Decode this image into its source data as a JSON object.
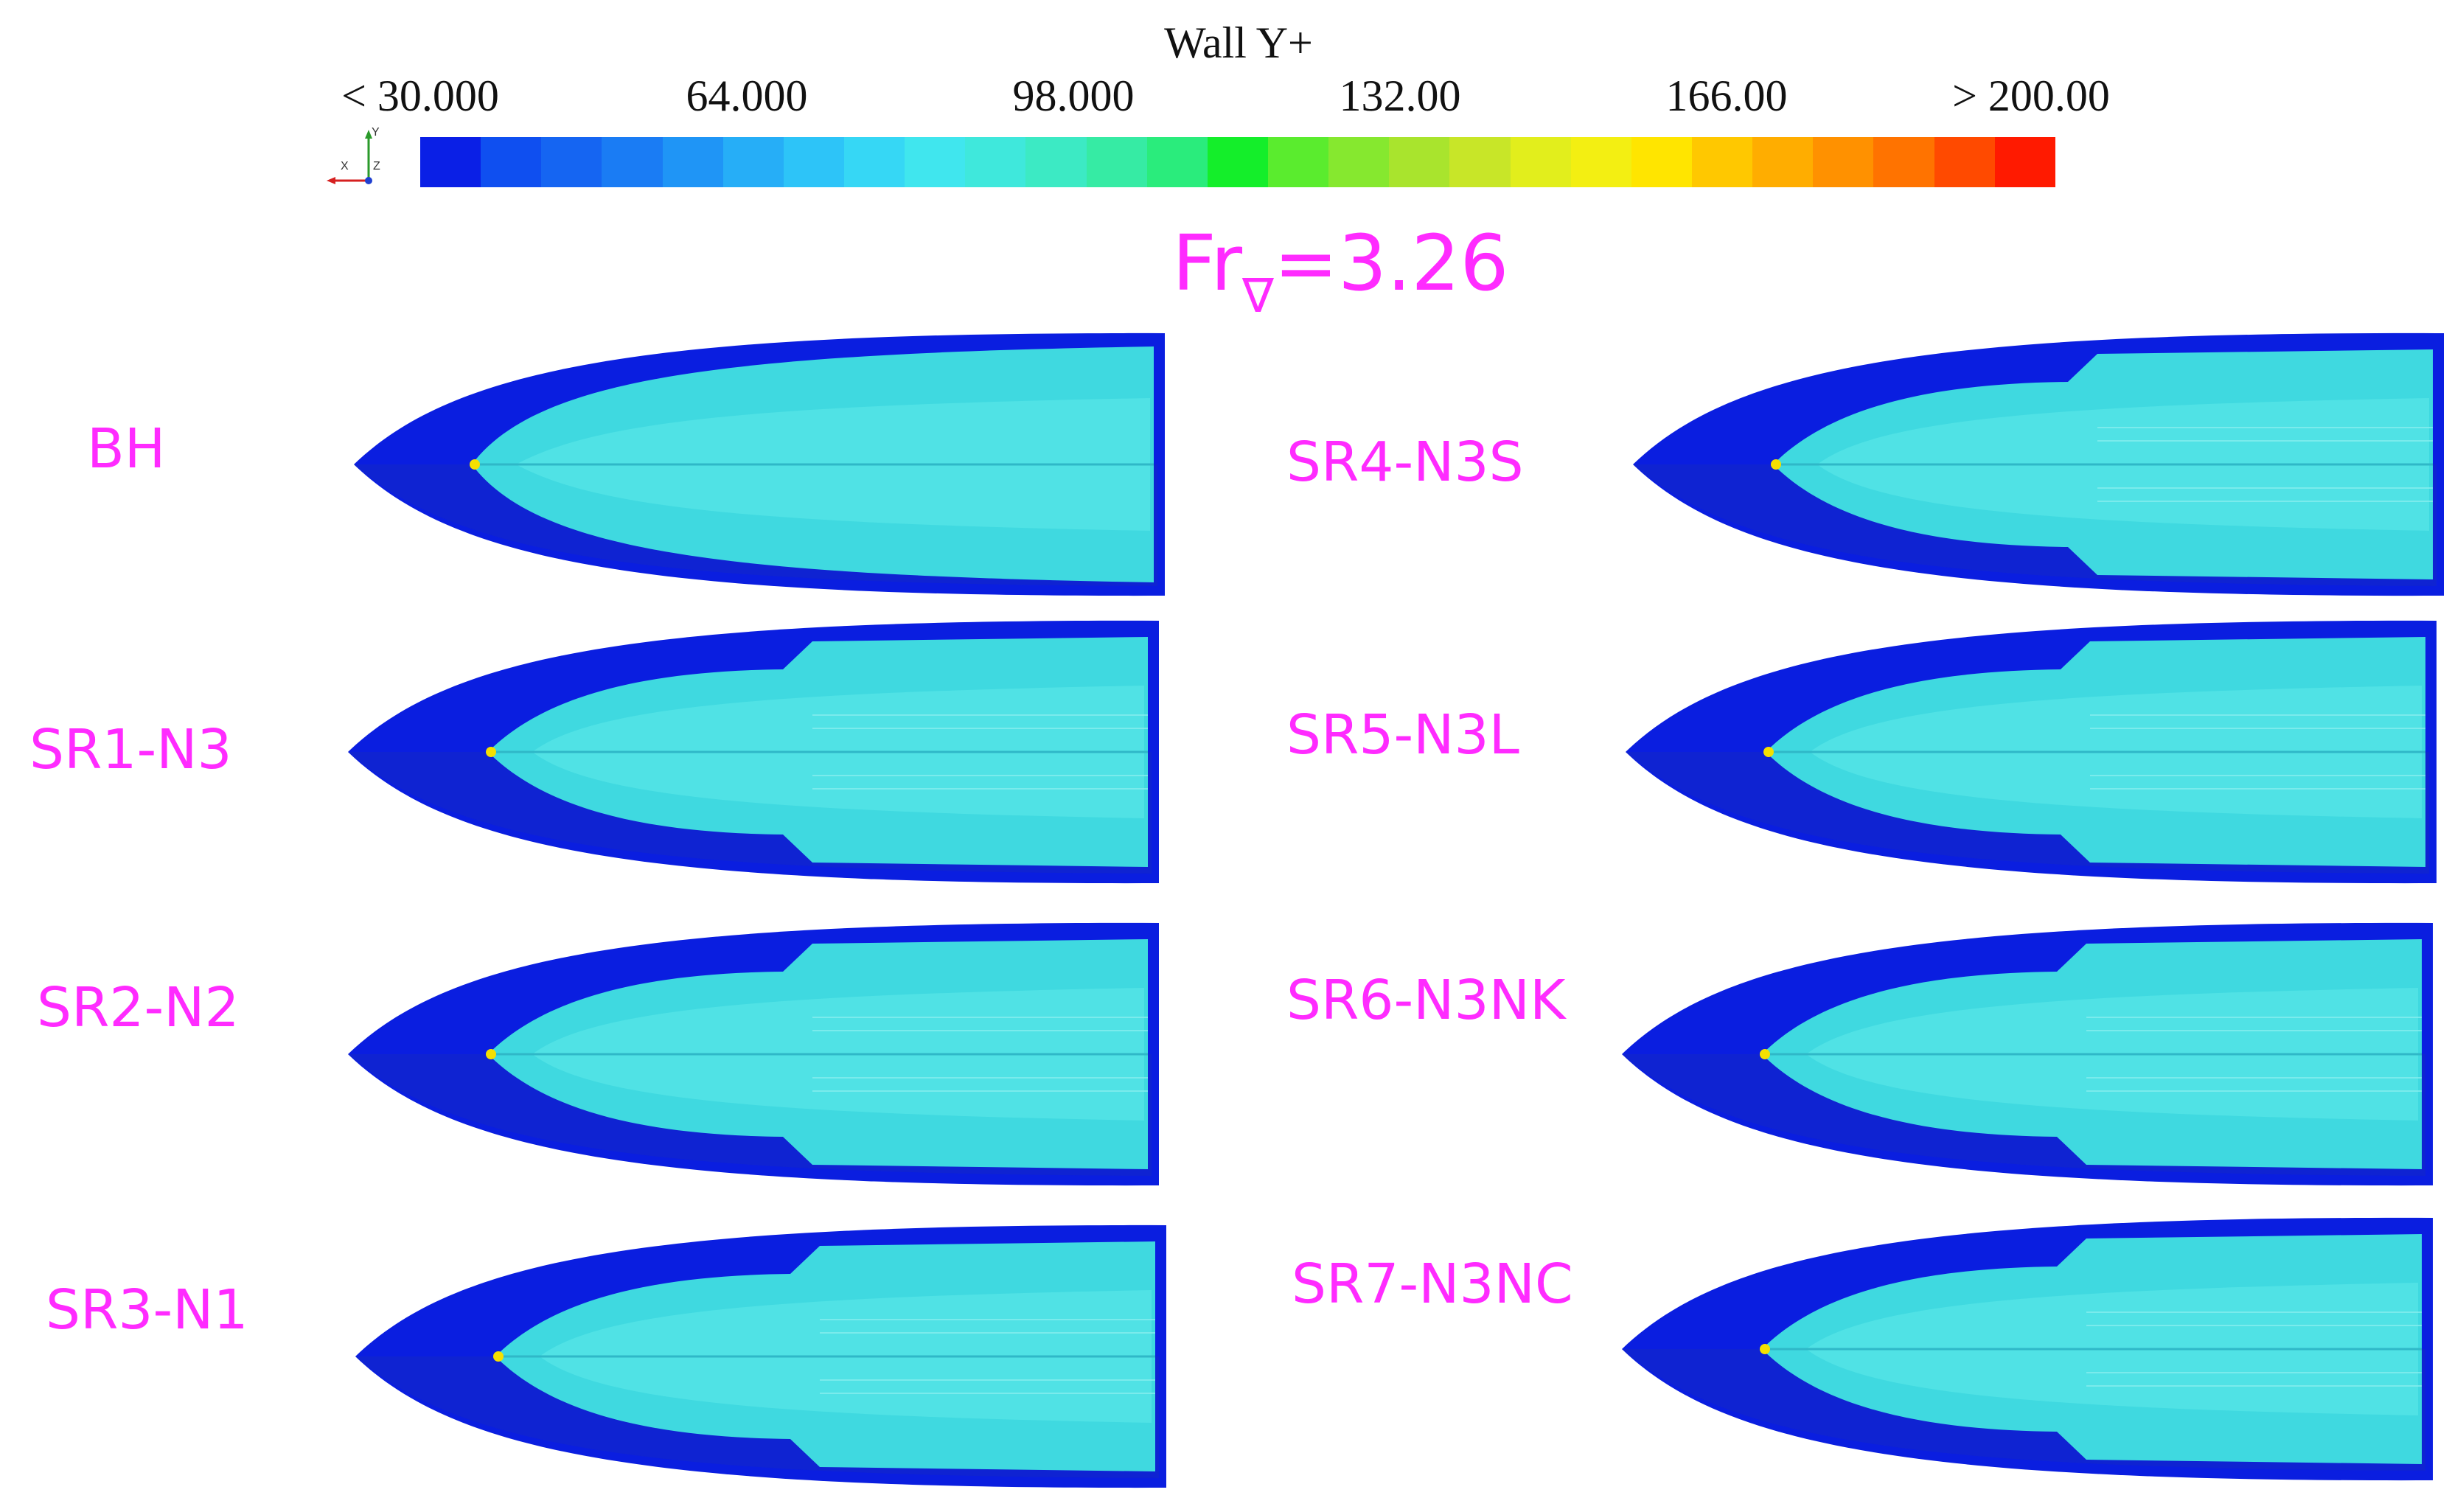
{
  "colorbar": {
    "title": "Wall Y+",
    "ticks": [
      "< 30.000",
      "64.000",
      "98.000",
      "132.00",
      "166.00",
      "> 200.00"
    ],
    "colors": [
      "#0a1fe6",
      "#0f4ff0",
      "#1565f2",
      "#1a7cf4",
      "#1f95f6",
      "#26aef7",
      "#2dc4f8",
      "#36d7f5",
      "#40e6ee",
      "#3fe8dc",
      "#3ceac4",
      "#36eba4",
      "#2aec7c",
      "#14ee2a",
      "#5aec2e",
      "#86e82f",
      "#a9e42d",
      "#c8e628",
      "#e2ee1c",
      "#f3ef12",
      "#ffe500",
      "#ffc800",
      "#ffad00",
      "#ff9100",
      "#ff7300",
      "#ff4a00",
      "#ff1a00"
    ],
    "axis_labels": [
      "X",
      "Y",
      "Z"
    ]
  },
  "froude": {
    "prefix": "Fr",
    "subscript": "∇",
    "value": "=3.26"
  },
  "hulls": [
    {
      "label": "BH",
      "variant": "bh"
    },
    {
      "label": "SR1-N3",
      "variant": "sr"
    },
    {
      "label": "SR2-N2",
      "variant": "sr"
    },
    {
      "label": "SR3-N1",
      "variant": "sr"
    },
    {
      "label": "SR4-N3S",
      "variant": "sr"
    },
    {
      "label": "SR5-N3L",
      "variant": "sr"
    },
    {
      "label": "SR6-N3NK",
      "variant": "sr"
    },
    {
      "label": "SR7-N3NC",
      "variant": "sr"
    }
  ],
  "palette": {
    "hull_dark": "#0a1ee0",
    "hull_shade": "#1b2fb8",
    "field": "#3fd9e0",
    "field_light": "#5fe9ea",
    "stagnation": "#f5e000",
    "label": "#ff2bff"
  }
}
